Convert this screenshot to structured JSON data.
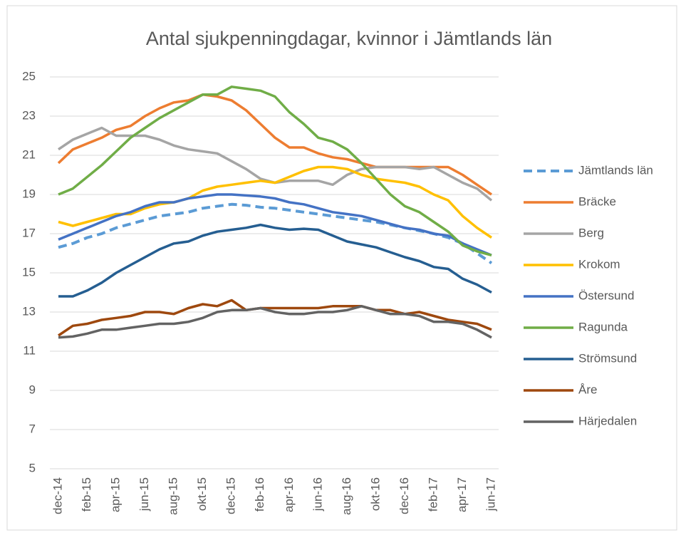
{
  "chart_data": {
    "type": "line",
    "title": "Antal sjukpenningdagar, kvinnor i Jämtlands län",
    "categories": [
      "dec-14",
      null,
      "feb-15",
      null,
      "apr-15",
      null,
      "jun-15",
      null,
      "aug-15",
      null,
      "okt-15",
      null,
      "dec-15",
      null,
      "feb-16",
      null,
      "apr-16",
      null,
      "jun-16",
      null,
      "aug-16",
      null,
      "okt-16",
      null,
      "dec-16",
      null,
      "feb-17",
      null,
      "apr-17",
      null,
      "jun-17"
    ],
    "ylim": [
      5,
      25
    ],
    "yticks": [
      5,
      7,
      9,
      11,
      13,
      15,
      17,
      19,
      21,
      23,
      25
    ],
    "grid": true,
    "legend": "right",
    "series": [
      {
        "name": "Jämtlands län",
        "color": "#5b9bd5",
        "dashed": true,
        "values": [
          16.3,
          16.5,
          16.8,
          17.0,
          17.3,
          17.5,
          17.7,
          17.9,
          18.0,
          18.1,
          18.3,
          18.4,
          18.5,
          18.45,
          18.35,
          18.3,
          18.2,
          18.1,
          18.0,
          17.9,
          17.8,
          17.7,
          17.6,
          17.45,
          17.3,
          17.15,
          17.0,
          16.8,
          16.5,
          16.0,
          15.5
        ]
      },
      {
        "name": "Bräcke",
        "color": "#ed7d31",
        "values": [
          20.6,
          21.3,
          21.6,
          21.9,
          22.3,
          22.5,
          23.0,
          23.4,
          23.7,
          23.8,
          24.1,
          24.0,
          23.8,
          23.3,
          22.6,
          21.9,
          21.4,
          21.4,
          21.1,
          20.9,
          20.8,
          20.6,
          20.4,
          20.4,
          20.4,
          20.4,
          20.4,
          20.4,
          20.0,
          19.5,
          19.0
        ]
      },
      {
        "name": "Berg",
        "color": "#a5a5a5",
        "values": [
          21.3,
          21.8,
          22.1,
          22.4,
          22.0,
          22.0,
          22.0,
          21.8,
          21.5,
          21.3,
          21.2,
          21.1,
          20.7,
          20.3,
          19.8,
          19.6,
          19.7,
          19.7,
          19.7,
          19.5,
          20.0,
          20.3,
          20.4,
          20.4,
          20.4,
          20.3,
          20.4,
          20.0,
          19.6,
          19.3,
          18.7
        ]
      },
      {
        "name": "Krokom",
        "color": "#ffc000",
        "values": [
          17.6,
          17.4,
          17.6,
          17.8,
          18.0,
          18.0,
          18.3,
          18.5,
          18.6,
          18.8,
          19.2,
          19.4,
          19.5,
          19.6,
          19.7,
          19.6,
          19.9,
          20.2,
          20.4,
          20.4,
          20.3,
          20.0,
          19.8,
          19.7,
          19.6,
          19.4,
          19.0,
          18.7,
          17.9,
          17.3,
          16.8
        ]
      },
      {
        "name": "Östersund",
        "color": "#4472c4",
        "values": [
          16.7,
          17.0,
          17.3,
          17.6,
          17.9,
          18.1,
          18.4,
          18.6,
          18.6,
          18.8,
          18.9,
          19.0,
          19.0,
          18.95,
          18.9,
          18.8,
          18.6,
          18.5,
          18.3,
          18.1,
          18.0,
          17.9,
          17.7,
          17.5,
          17.3,
          17.2,
          17.0,
          16.9,
          16.5,
          16.2,
          15.9
        ]
      },
      {
        "name": "Ragunda",
        "color": "#70ad47",
        "values": [
          19.0,
          19.3,
          19.9,
          20.5,
          21.2,
          21.9,
          22.4,
          22.9,
          23.3,
          23.7,
          24.1,
          24.1,
          24.5,
          24.4,
          24.3,
          24.0,
          23.2,
          22.6,
          21.9,
          21.7,
          21.3,
          20.6,
          19.8,
          19.0,
          18.4,
          18.1,
          17.6,
          17.1,
          16.4,
          16.1,
          15.9
        ]
      },
      {
        "name": "Strömsund",
        "color": "#255e91",
        "values": [
          13.8,
          13.8,
          14.1,
          14.5,
          15.0,
          15.4,
          15.8,
          16.2,
          16.5,
          16.6,
          16.9,
          17.1,
          17.2,
          17.3,
          17.45,
          17.3,
          17.2,
          17.25,
          17.2,
          16.9,
          16.6,
          16.45,
          16.3,
          16.05,
          15.8,
          15.6,
          15.3,
          15.2,
          14.7,
          14.4,
          14.0
        ]
      },
      {
        "name": "Åre",
        "color": "#9e480e",
        "values": [
          11.8,
          12.3,
          12.4,
          12.6,
          12.7,
          12.8,
          13.0,
          13.0,
          12.9,
          13.2,
          13.4,
          13.3,
          13.6,
          13.1,
          13.2,
          13.2,
          13.2,
          13.2,
          13.2,
          13.3,
          13.3,
          13.3,
          13.1,
          13.1,
          12.9,
          13.0,
          12.8,
          12.6,
          12.5,
          12.4,
          12.1
        ]
      },
      {
        "name": "Härjedalen",
        "color": "#636363",
        "values": [
          11.7,
          11.75,
          11.9,
          12.1,
          12.1,
          12.2,
          12.3,
          12.4,
          12.4,
          12.5,
          12.7,
          13.0,
          13.1,
          13.1,
          13.2,
          13.0,
          12.9,
          12.9,
          13.0,
          13.0,
          13.1,
          13.3,
          13.1,
          12.9,
          12.9,
          12.8,
          12.5,
          12.5,
          12.4,
          12.1,
          11.7
        ]
      }
    ]
  }
}
